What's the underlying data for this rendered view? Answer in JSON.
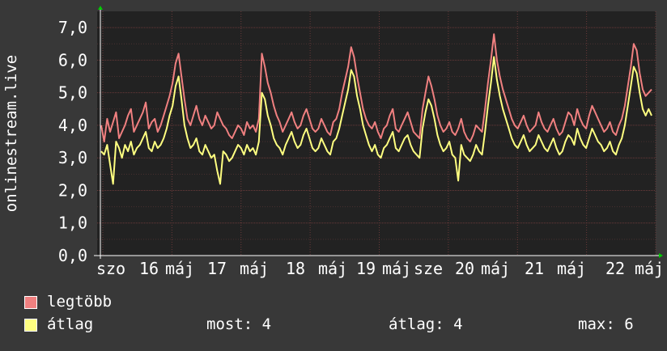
{
  "colors": {
    "background": "#383838",
    "plot": "#222222",
    "grid": "#5a3333",
    "axis": "#ffffff",
    "legtobb": "#f08080",
    "atlag": "#ffff80"
  },
  "legend": {
    "items": [
      {
        "label": "legtöbb",
        "color": "#f08080"
      },
      {
        "label": "átlag",
        "color": "#ffff80"
      }
    ],
    "stats": {
      "most": "most: 4",
      "atlag": "átlag: 4",
      "max": "max: 6"
    }
  },
  "chart_data": {
    "type": "line",
    "ylabel": "onlinestream.live",
    "ylim": [
      0,
      7.5
    ],
    "yticks": [
      "0,0",
      "1,0",
      "2,0",
      "3,0",
      "4,0",
      "5,0",
      "6,0",
      "7,0"
    ],
    "xticks": [
      "szo",
      "16",
      "máj",
      "17",
      "máj",
      "18",
      "máj",
      "19",
      "máj",
      "sze",
      "20",
      "máj",
      "21",
      "máj",
      "22",
      "máj"
    ],
    "grid": true,
    "series": [
      {
        "name": "legtöbb",
        "color": "#f08080",
        "values": [
          4.0,
          3.5,
          4.2,
          3.8,
          4.1,
          4.4,
          3.6,
          3.8,
          4.0,
          4.3,
          4.5,
          3.8,
          4.0,
          4.2,
          4.4,
          4.7,
          3.9,
          4.1,
          4.2,
          3.8,
          4.0,
          4.3,
          4.6,
          4.9,
          5.3,
          5.9,
          6.2,
          5.5,
          4.8,
          4.2,
          4.0,
          4.3,
          4.6,
          4.2,
          4.0,
          4.3,
          4.1,
          3.9,
          4.0,
          4.4,
          4.2,
          4.0,
          3.9,
          3.7,
          3.6,
          3.8,
          4.0,
          3.9,
          3.7,
          4.1,
          3.9,
          4.0,
          3.8,
          4.2,
          6.2,
          5.8,
          5.3,
          5.0,
          4.6,
          4.3,
          4.1,
          3.8,
          4.0,
          4.2,
          4.4,
          4.1,
          3.9,
          4.0,
          4.3,
          4.5,
          4.2,
          3.9,
          3.8,
          3.9,
          4.2,
          4.0,
          3.8,
          3.7,
          4.1,
          4.2,
          4.5,
          5.0,
          5.4,
          5.8,
          6.4,
          6.1,
          5.5,
          5.0,
          4.5,
          4.2,
          4.0,
          3.9,
          4.1,
          3.8,
          3.6,
          3.9,
          4.0,
          4.3,
          4.5,
          3.9,
          3.8,
          4.0,
          4.2,
          4.4,
          4.1,
          3.8,
          3.7,
          3.6,
          4.5,
          5.0,
          5.5,
          5.2,
          4.8,
          4.3,
          4.0,
          3.8,
          3.9,
          4.1,
          3.8,
          3.7,
          3.9,
          4.2,
          3.8,
          3.6,
          3.5,
          3.7,
          4.0,
          3.9,
          3.8,
          4.5,
          5.3,
          6.0,
          6.8,
          6.0,
          5.5,
          5.1,
          4.8,
          4.5,
          4.2,
          4.0,
          3.9,
          4.1,
          4.3,
          4.0,
          3.8,
          3.9,
          4.0,
          4.4,
          4.1,
          3.9,
          3.8,
          4.0,
          4.2,
          3.9,
          3.7,
          3.8,
          4.1,
          4.4,
          4.3,
          4.0,
          4.5,
          4.2,
          4.0,
          3.9,
          4.3,
          4.6,
          4.4,
          4.2,
          4.0,
          3.8,
          3.9,
          4.1,
          3.8,
          3.7,
          4.0,
          4.2,
          4.6,
          5.2,
          5.8,
          6.5,
          6.3,
          5.6,
          5.1,
          4.9,
          5.0,
          5.1
        ]
      },
      {
        "name": "átlag",
        "color": "#ffff80",
        "values": [
          3.2,
          3.1,
          3.4,
          2.8,
          2.2,
          3.5,
          3.3,
          3.0,
          3.4,
          3.2,
          3.5,
          3.1,
          3.3,
          3.4,
          3.6,
          3.8,
          3.3,
          3.2,
          3.5,
          3.3,
          3.4,
          3.6,
          3.9,
          4.3,
          4.6,
          5.2,
          5.5,
          4.8,
          4.0,
          3.6,
          3.3,
          3.4,
          3.6,
          3.2,
          3.1,
          3.4,
          3.2,
          3.0,
          3.1,
          2.6,
          2.2,
          3.2,
          3.1,
          2.9,
          3.0,
          3.2,
          3.4,
          3.3,
          3.1,
          3.4,
          3.2,
          3.3,
          3.1,
          3.5,
          5.0,
          4.8,
          4.3,
          4.0,
          3.6,
          3.4,
          3.3,
          3.1,
          3.4,
          3.6,
          3.8,
          3.5,
          3.3,
          3.4,
          3.7,
          3.9,
          3.6,
          3.3,
          3.2,
          3.3,
          3.6,
          3.4,
          3.2,
          3.1,
          3.5,
          3.6,
          3.9,
          4.3,
          4.7,
          5.1,
          5.7,
          5.5,
          4.9,
          4.5,
          4.0,
          3.7,
          3.4,
          3.2,
          3.4,
          3.1,
          3.0,
          3.3,
          3.4,
          3.6,
          3.8,
          3.3,
          3.2,
          3.4,
          3.6,
          3.7,
          3.4,
          3.2,
          3.1,
          3.0,
          3.9,
          4.4,
          4.8,
          4.6,
          4.2,
          3.7,
          3.4,
          3.2,
          3.3,
          3.5,
          3.1,
          3.0,
          2.3,
          3.4,
          3.1,
          3.0,
          2.9,
          3.1,
          3.4,
          3.2,
          3.1,
          3.8,
          4.6,
          5.3,
          6.1,
          5.4,
          4.9,
          4.5,
          4.2,
          3.9,
          3.6,
          3.4,
          3.3,
          3.5,
          3.7,
          3.4,
          3.2,
          3.3,
          3.4,
          3.7,
          3.5,
          3.3,
          3.2,
          3.4,
          3.6,
          3.3,
          3.1,
          3.2,
          3.5,
          3.7,
          3.6,
          3.4,
          3.9,
          3.6,
          3.4,
          3.3,
          3.6,
          3.9,
          3.7,
          3.5,
          3.4,
          3.2,
          3.3,
          3.5,
          3.2,
          3.1,
          3.4,
          3.6,
          4.0,
          4.6,
          5.2,
          5.8,
          5.6,
          5.0,
          4.5,
          4.3,
          4.5,
          4.3
        ]
      }
    ]
  }
}
